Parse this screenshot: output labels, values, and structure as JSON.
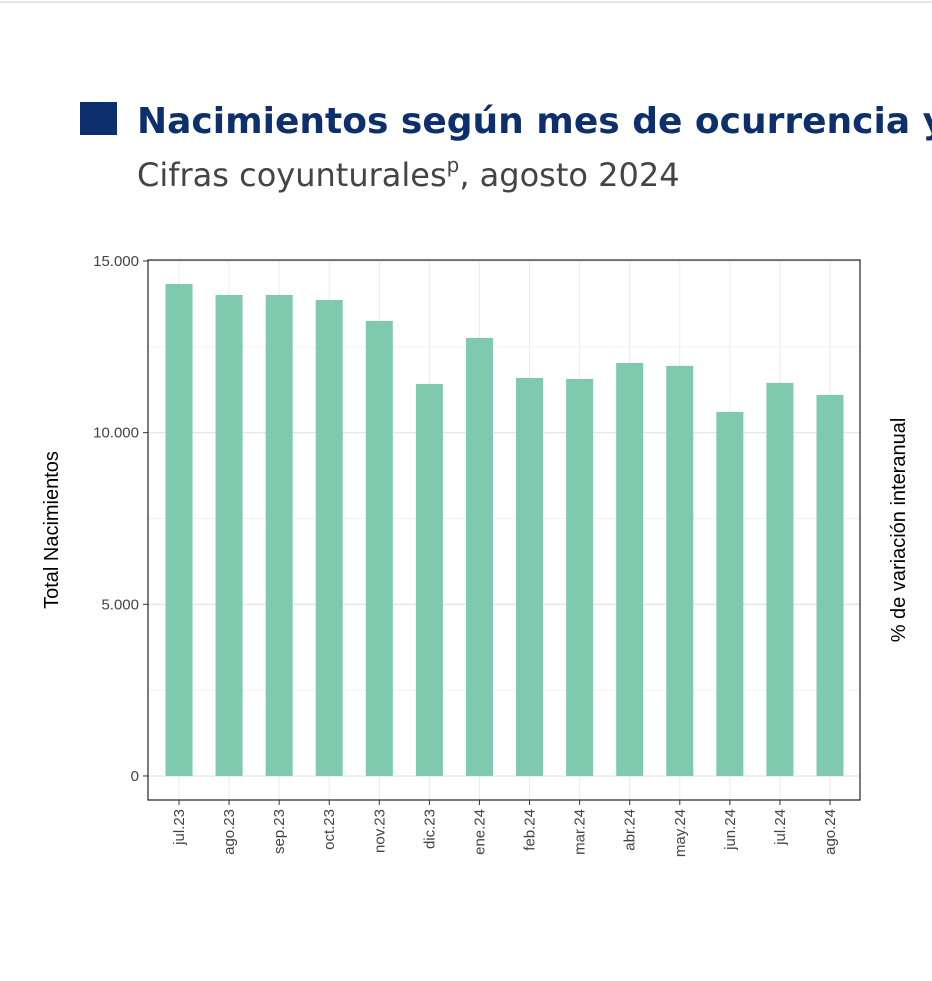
{
  "chart_data": {
    "type": "bar",
    "title": "Nacimientos según mes de ocurrencia y po",
    "subtitle": "Cifras coyunturales",
    "subtitle_superscript": "p",
    "subtitle_rest": ", agosto 2024",
    "y_label": "Total Nacimientos",
    "y2_label": "% de variación interanual",
    "categories": [
      "jul.23",
      "ago.23",
      "sep.23",
      "oct.23",
      "nov.23",
      "dic.23",
      "ene.24",
      "feb.24",
      "mar.24",
      "abr.24",
      "may.24",
      "jun.24",
      "jul.24",
      "ago.24"
    ],
    "values": [
      14330,
      14010,
      14010,
      13865,
      13255,
      11420,
      12760,
      11595,
      11565,
      12030,
      11945,
      10605,
      11450,
      11100
    ],
    "color": "#7fcaaf",
    "ylim": [
      -700,
      15000
    ],
    "yticks": [
      {
        "value": 0,
        "label": "0"
      },
      {
        "value": 5000,
        "label": "5.000"
      },
      {
        "value": 10000,
        "label": "10.000"
      },
      {
        "value": 15000,
        "label": "15.000"
      }
    ],
    "minor_yticks": [
      2500,
      7500,
      12500
    ],
    "grid": true
  }
}
